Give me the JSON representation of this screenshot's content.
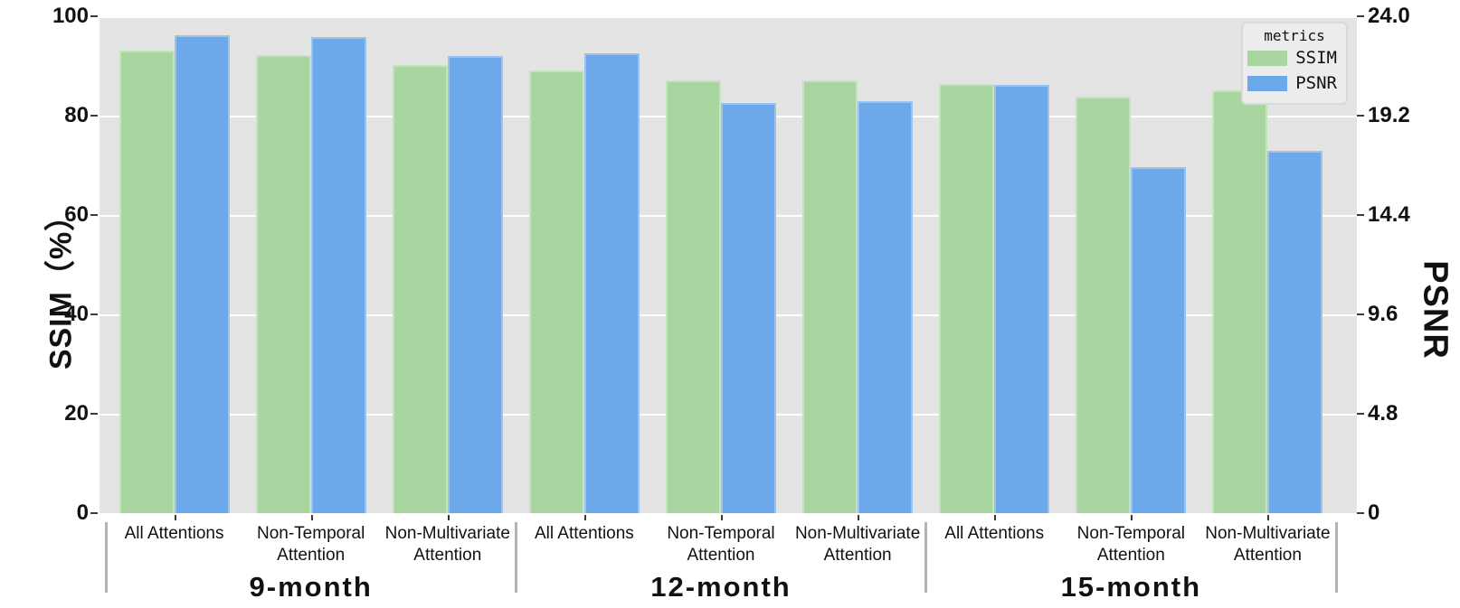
{
  "chart_data": {
    "type": "bar",
    "title": "",
    "groups": [
      "9-month",
      "12-month",
      "15-month"
    ],
    "categories": [
      [
        "All Attentions"
      ],
      [
        "Non-Temporal",
        "Attention"
      ],
      [
        "Non-Multivariate",
        "Attention"
      ]
    ],
    "series": [
      {
        "name": "SSIM",
        "axis": "left",
        "color": "#a8d5a0",
        "values": [
          [
            93.1,
            92.1,
            90.2
          ],
          [
            89.1,
            87.0,
            87.0
          ],
          [
            86.4,
            83.9,
            85.1
          ]
        ]
      },
      {
        "name": "PSNR",
        "axis": "right",
        "color": "#6da9ea",
        "values": [
          [
            23.1,
            23.0,
            22.1
          ],
          [
            22.2,
            19.8,
            19.9
          ],
          [
            20.7,
            16.7,
            17.5
          ]
        ]
      }
    ],
    "left_axis": {
      "title": "SSIM（%）",
      "ticks": [
        "100",
        "80",
        "60",
        "40",
        "20",
        "0"
      ],
      "min": 0,
      "max": 100
    },
    "right_axis": {
      "title": "PSNR",
      "ticks": [
        "24.0",
        "19.2",
        "14.4",
        "9.6",
        "4.8",
        "0"
      ],
      "min": 0,
      "max": 24
    },
    "legend": {
      "title": "metrics",
      "entries": [
        {
          "label": "SSIM",
          "color": "#a8d5a0"
        },
        {
          "label": "PSNR",
          "color": "#6da9ea"
        }
      ]
    },
    "layout": {
      "grid": "on",
      "legend_position": "top-right",
      "plot_bg": "#e4e4e4",
      "grid_color": "#ffffff",
      "separator_color": "#b3b3b3"
    }
  }
}
